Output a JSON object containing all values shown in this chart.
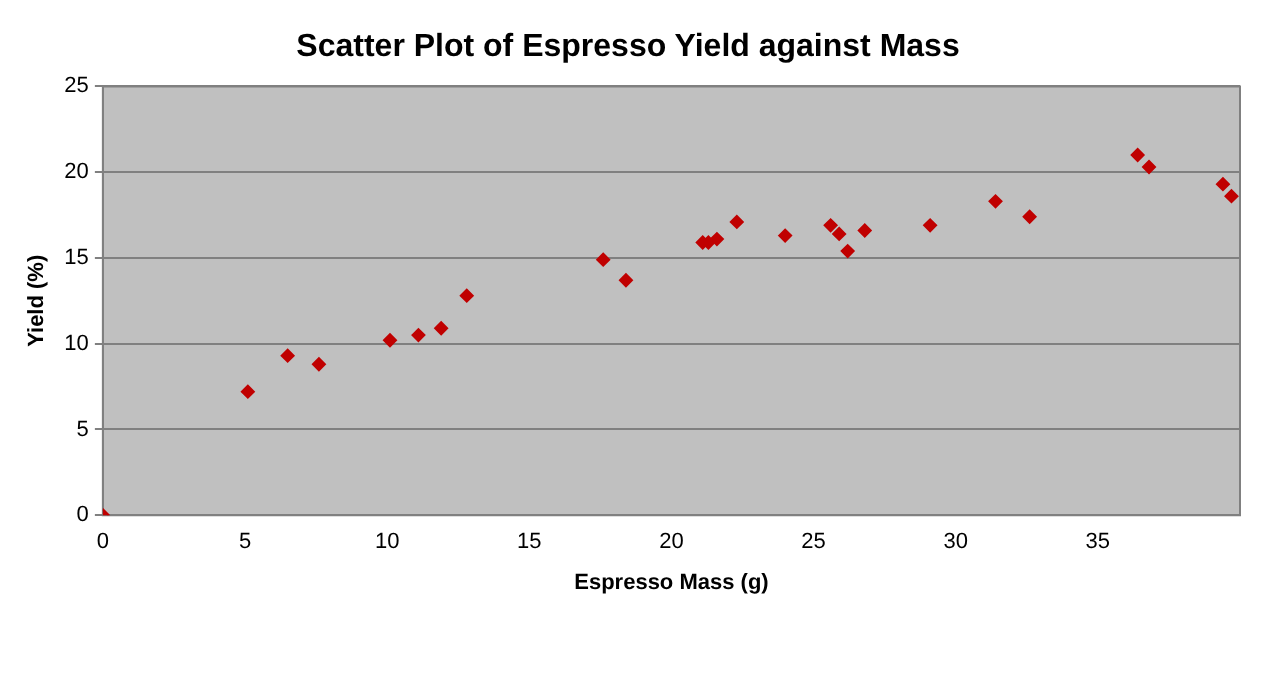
{
  "chart_data": {
    "type": "scatter",
    "title": "Scatter Plot of Espresso Yield against Mass",
    "xlabel": "Espresso Mass (g)",
    "ylabel": "Yield (%)",
    "x": [
      0,
      5.1,
      6.5,
      7.6,
      10.1,
      11.1,
      11.9,
      12.8,
      17.6,
      18.4,
      21.1,
      21.3,
      21.6,
      22.3,
      24.0,
      25.6,
      25.9,
      26.2,
      26.8,
      29.1,
      31.4,
      32.6,
      36.4,
      36.8,
      39.4,
      39.7
    ],
    "values": [
      0,
      7.2,
      9.3,
      8.8,
      10.2,
      10.5,
      10.9,
      12.8,
      14.9,
      13.7,
      15.9,
      15.9,
      16.1,
      17.1,
      16.3,
      16.9,
      16.4,
      15.4,
      16.6,
      16.9,
      18.3,
      17.4,
      21.0,
      20.3,
      19.3,
      18.6
    ],
    "color": "#c00000",
    "marker": "diamond",
    "xlim": [
      0,
      40
    ],
    "xticks": [
      0,
      5,
      10,
      15,
      20,
      25,
      30,
      35
    ],
    "ylim": [
      0,
      25
    ],
    "yticks": [
      0,
      5,
      10,
      15,
      20,
      25
    ],
    "grid": "y",
    "legend": false
  }
}
